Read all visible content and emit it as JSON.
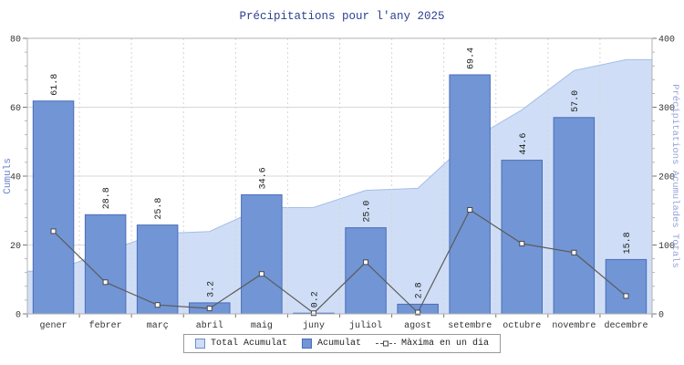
{
  "chart_data": {
    "type": "bar",
    "title": "Précipitations pour l'any 2025",
    "categories": [
      "gener",
      "febrer",
      "març",
      "abril",
      "maig",
      "juny",
      "juliol",
      "agost",
      "setembre",
      "octubre",
      "novembre",
      "decembre"
    ],
    "ylabel_left": "Cumuls",
    "ylabel_right": "Précipitations Acumulades Totals",
    "ylim_left": [
      0,
      80
    ],
    "ylim_right": [
      0,
      400
    ],
    "yticks_left": [
      0,
      20,
      40,
      60,
      80
    ],
    "yticks_right": [
      0,
      100,
      200,
      300,
      400
    ],
    "grid": true,
    "legend_position": "bottom",
    "series": [
      {
        "name": "Total Acumulat",
        "type": "area",
        "axis": "right",
        "values": [
          61.8,
          90.6,
          116.4,
          119.6,
          154.2,
          154.4,
          179.4,
          182.2,
          251.6,
          296.2,
          353.2,
          369.0
        ]
      },
      {
        "name": "Acumulat",
        "type": "bar",
        "axis": "left",
        "data_labels": true,
        "values": [
          61.8,
          28.8,
          25.8,
          3.2,
          34.6,
          0.2,
          25.0,
          2.8,
          69.4,
          44.6,
          57.0,
          15.8
        ]
      },
      {
        "name": "Màxima en un dia",
        "type": "line",
        "axis": "left",
        "values": [
          24.0,
          9.2,
          2.6,
          1.6,
          11.6,
          0.2,
          15.0,
          0.4,
          30.2,
          20.4,
          17.8,
          5.2
        ]
      }
    ],
    "colors": {
      "bar_fill": "#7295d5",
      "bar_stroke": "#4a6db9",
      "area_fill": "#cfdef6",
      "area_stroke": "#a3bde8",
      "line": "#5b5b5b",
      "marker_fill": "#ffffff",
      "marker_stroke": "#4a4a4a",
      "title": "#2d3f8f",
      "axis_label_left": "#6d83cb",
      "axis_label_right": "#93a4da",
      "tick_text": "#333333",
      "grid": "#d9d9d9",
      "grid_vertical": "#d4d4d4",
      "plot_border": "#b3b3b3",
      "bar_label_text": "#1a1a1a"
    }
  }
}
